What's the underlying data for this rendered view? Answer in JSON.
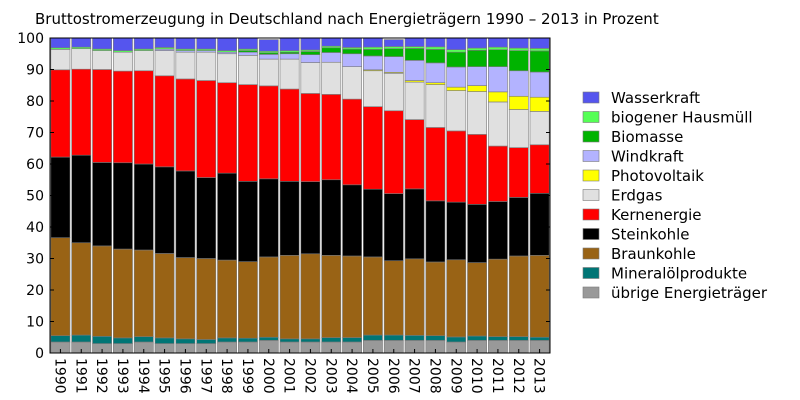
{
  "chart_data": {
    "type": "bar",
    "stacked": true,
    "title": "Bruttostromerzeugung in Deutschland nach Energieträgern 1990 – 2013 in Prozent",
    "xlabel": "",
    "ylabel": "",
    "ylim": [
      0,
      100
    ],
    "yticks": [
      "0",
      "10",
      "20",
      "30",
      "40",
      "50",
      "60",
      "70",
      "80",
      "90",
      "100"
    ],
    "legend_position": "right",
    "categories": [
      "1990",
      "1991",
      "1992",
      "1993",
      "1994",
      "1995",
      "1996",
      "1997",
      "1998",
      "1999",
      "2000",
      "2001",
      "2002",
      "2003",
      "2004",
      "2005",
      "2006",
      "2007",
      "2008",
      "2009",
      "2010",
      "2011",
      "2012",
      "2013"
    ],
    "series": [
      {
        "name": "übrige Energieträger",
        "color": "#999999",
        "values": [
          3.5,
          3.5,
          3.0,
          3.0,
          3.5,
          3.0,
          3.0,
          3.0,
          3.5,
          3.5,
          4.0,
          3.5,
          3.5,
          3.5,
          3.5,
          4.0,
          4.0,
          4.0,
          4.0,
          3.5,
          4.0,
          4.0,
          4.0,
          4.0
        ]
      },
      {
        "name": "Mineralölprodukte",
        "color": "#007575",
        "values": [
          2.0,
          2.2,
          2.3,
          1.8,
          1.7,
          1.8,
          1.5,
          1.3,
          1.3,
          1.2,
          1.0,
          1.0,
          1.0,
          1.4,
          1.4,
          1.7,
          1.7,
          1.6,
          1.5,
          1.6,
          1.4,
          1.2,
          1.2,
          1.0
        ]
      },
      {
        "name": "Braunkohle",
        "color": "#996315",
        "values": [
          31.1,
          29.3,
          28.7,
          28.2,
          27.5,
          26.8,
          25.8,
          25.7,
          24.7,
          24.3,
          25.5,
          26.5,
          27.0,
          26.1,
          25.9,
          24.8,
          23.6,
          24.3,
          23.4,
          24.5,
          23.3,
          24.6,
          25.6,
          26.0
        ]
      },
      {
        "name": "Steinkohle",
        "color": "#000000",
        "values": [
          25.6,
          27.8,
          26.5,
          27.4,
          27.3,
          27.5,
          27.5,
          25.7,
          27.6,
          25.5,
          24.8,
          23.5,
          22.9,
          24.0,
          22.6,
          21.5,
          21.3,
          22.2,
          19.4,
          18.3,
          18.5,
          18.3,
          18.6,
          19.7
        ]
      },
      {
        "name": "Kernenergie",
        "color": "#ff0000",
        "values": [
          27.7,
          27.3,
          29.5,
          29.1,
          29.6,
          28.9,
          29.2,
          30.8,
          28.7,
          30.7,
          29.5,
          29.3,
          28.0,
          27.1,
          27.2,
          26.2,
          26.3,
          22.0,
          23.3,
          22.6,
          22.2,
          17.6,
          15.8,
          15.4
        ]
      },
      {
        "name": "Erdgas",
        "color": "#e0e0e0",
        "values": [
          6.5,
          6.5,
          6.0,
          6.0,
          6.4,
          8.0,
          8.5,
          9.0,
          9.2,
          9.3,
          8.5,
          9.5,
          9.8,
          10.2,
          10.3,
          11.4,
          11.9,
          11.9,
          13.6,
          12.8,
          13.6,
          14.0,
          12.1,
          10.6
        ]
      },
      {
        "name": "Photovoltaik",
        "color": "#ffff00",
        "values": [
          0,
          0,
          0,
          0,
          0,
          0,
          0,
          0,
          0,
          0,
          0,
          0,
          0,
          0,
          0,
          0.3,
          0.3,
          0.5,
          0.6,
          1.1,
          1.9,
          3.2,
          4.2,
          4.5
        ]
      },
      {
        "name": "Windkraft",
        "color": "#b3b3ff",
        "values": [
          0,
          0,
          0,
          0,
          0,
          0.5,
          0.5,
          0.5,
          0.5,
          1.0,
          1.5,
          1.7,
          2.5,
          3.1,
          4.1,
          4.4,
          5.0,
          6.4,
          6.3,
          6.4,
          6.0,
          8.0,
          8.1,
          8.0
        ]
      },
      {
        "name": "Biomasse",
        "color": "#00b300",
        "values": [
          0,
          0,
          0,
          0,
          0,
          0,
          0,
          0,
          0,
          0.5,
          0.5,
          0.5,
          1.0,
          1.5,
          1.5,
          2.1,
          2.5,
          3.8,
          4.3,
          4.7,
          5.2,
          5.4,
          6.4,
          6.7
        ]
      },
      {
        "name": "biogener Hausmüll",
        "color": "#55ff55",
        "values": [
          0.5,
          0.5,
          0.5,
          0.5,
          0.5,
          0.5,
          0.5,
          0.5,
          0.5,
          0.5,
          0.5,
          0.5,
          0.5,
          0.5,
          0.5,
          0.7,
          0.7,
          0.6,
          0.8,
          0.8,
          0.7,
          0.8,
          0.8,
          0.8
        ]
      },
      {
        "name": "Wasserkraft",
        "color": "#5555ee",
        "values": [
          3.1,
          2.9,
          3.5,
          4.0,
          3.5,
          3.0,
          3.5,
          3.5,
          4.0,
          3.5,
          3.7,
          4.0,
          3.8,
          3.0,
          3.0,
          2.9,
          2.2,
          2.7,
          2.8,
          3.7,
          3.2,
          2.9,
          3.2,
          3.3
        ]
      }
    ]
  }
}
